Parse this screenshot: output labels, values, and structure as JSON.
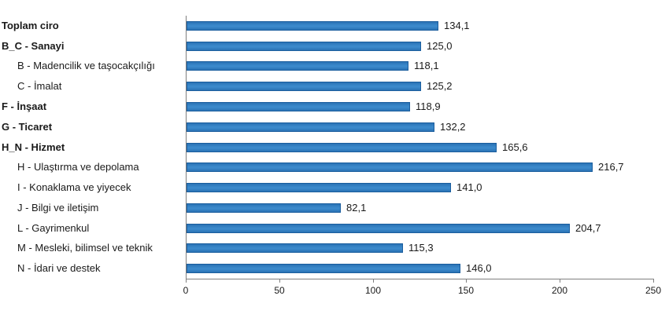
{
  "chart_data": {
    "type": "bar",
    "orientation": "horizontal",
    "title": "",
    "xlabel": "",
    "ylabel": "",
    "xlim": [
      0,
      250
    ],
    "x_ticks": [
      0,
      50,
      100,
      150,
      200,
      250
    ],
    "x_tick_labels": [
      "0",
      "50",
      "100",
      "150",
      "200",
      "250"
    ],
    "grid": false,
    "legend": "none",
    "decimal_separator": ",",
    "categories": [
      {
        "label": "Toplam ciro",
        "bold": true,
        "indent": false
      },
      {
        "label": "B_C - Sanayi",
        "bold": true,
        "indent": false
      },
      {
        "label": "B - Madencilik ve taşocakçılığı",
        "bold": false,
        "indent": true
      },
      {
        "label": "C - İmalat",
        "bold": false,
        "indent": true
      },
      {
        "label": "F - İnşaat",
        "bold": true,
        "indent": false
      },
      {
        "label": "G - Ticaret",
        "bold": true,
        "indent": false
      },
      {
        "label": "H_N - Hizmet",
        "bold": true,
        "indent": false
      },
      {
        "label": "H - Ulaştırma ve depolama",
        "bold": false,
        "indent": true
      },
      {
        "label": "I - Konaklama ve yiyecek",
        "bold": false,
        "indent": true
      },
      {
        "label": "J - Bilgi ve iletişim",
        "bold": false,
        "indent": true
      },
      {
        "label": "L - Gayrimenkul",
        "bold": false,
        "indent": true
      },
      {
        "label": "M - Mesleki, bilimsel ve teknik",
        "bold": false,
        "indent": true
      },
      {
        "label": "N - İdari ve destek",
        "bold": false,
        "indent": true
      }
    ],
    "values": [
      134.1,
      125.0,
      118.1,
      125.2,
      118.9,
      132.2,
      165.6,
      216.7,
      141.0,
      82.1,
      204.7,
      115.3,
      146.0
    ],
    "value_labels": [
      "134,1",
      "125,0",
      "118,1",
      "125,2",
      "118,9",
      "132,2",
      "165,6",
      "216,7",
      "141,0",
      "82,1",
      "204,7",
      "115,3",
      "146,0"
    ],
    "colors": {
      "bar_fill": "#3B89CB",
      "bar_border": "#1B5E9E",
      "axis": "#7F7F7F",
      "text": "#1A1A1A"
    }
  }
}
